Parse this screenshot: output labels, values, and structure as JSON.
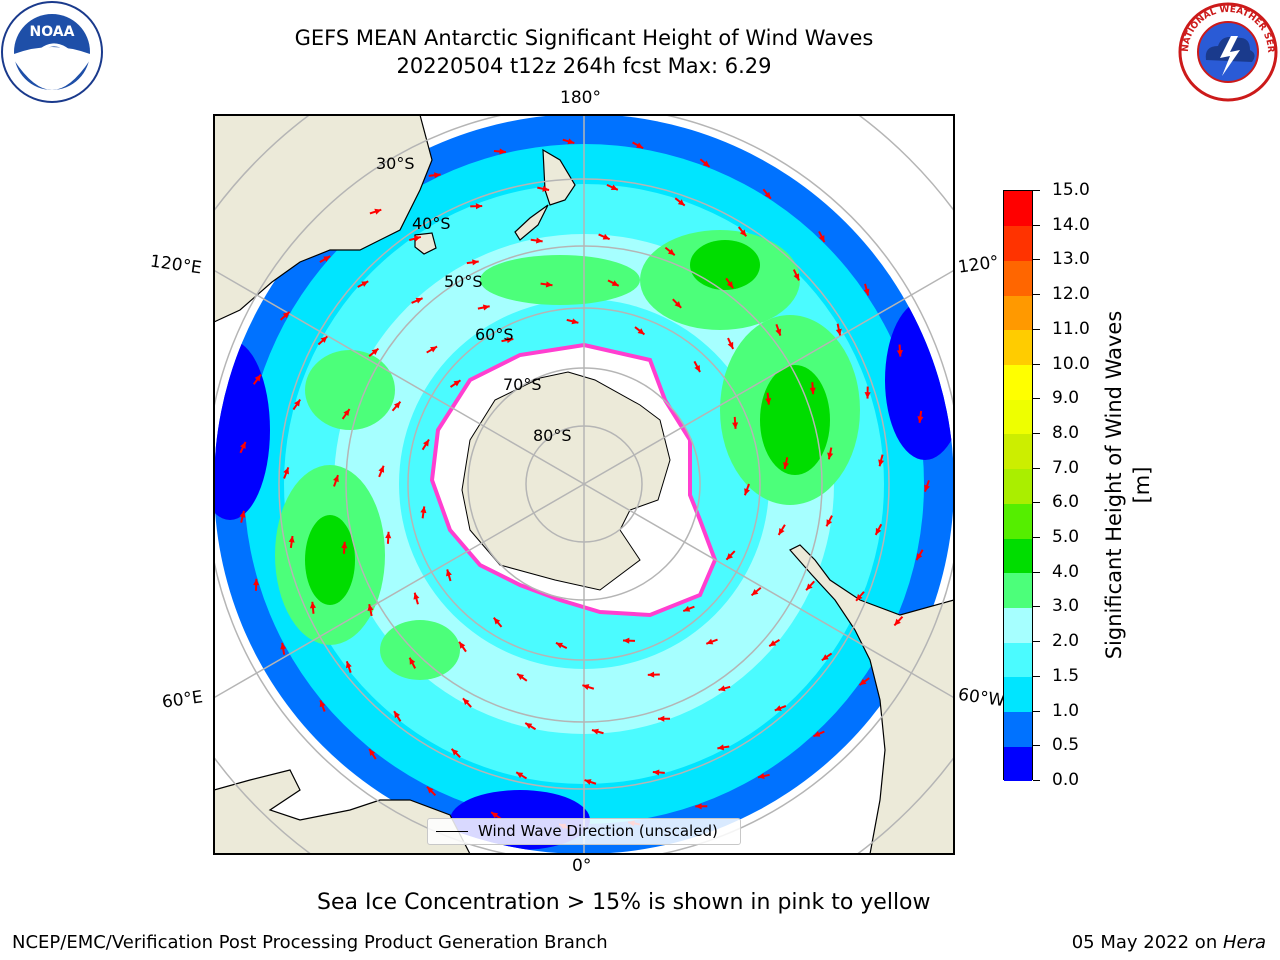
{
  "header": {
    "title_line1": "GEFS MEAN Antarctic Significant Height of Wind Waves",
    "title_line2": "20220504 t12z 264h fcst   Max: 6.29"
  },
  "logos": {
    "left": {
      "icon": "noaa-logo",
      "text": "NOAA"
    },
    "right": {
      "icon": "nws-logo",
      "text": "NATIONAL WEATHER SERVICE"
    }
  },
  "map": {
    "projection": "south-polar-stereographic",
    "lon_labels": {
      "top": "180°",
      "bottom": "0°",
      "left_upper": "120°E",
      "left_lower": "60°E",
      "right_upper": "120°",
      "right_lower": "60°W"
    },
    "lat_labels": [
      "30°S",
      "40°S",
      "50°S",
      "60°S",
      "70°S",
      "80°S"
    ],
    "legend": {
      "label": "Wind Wave Direction (unscaled)"
    },
    "colors": {
      "land": "#ecead9",
      "ice_edge": "#ff3fd0",
      "arrow": "#ff0000"
    }
  },
  "colorbar": {
    "title": "Significant Height of Wind Waves [m]",
    "ticks": [
      "0.0",
      "0.5",
      "1.0",
      "1.5",
      "2.0",
      "3.0",
      "4.0",
      "5.0",
      "6.0",
      "7.0",
      "8.0",
      "9.0",
      "10.0",
      "11.0",
      "12.0",
      "13.0",
      "14.0",
      "15.0"
    ],
    "colors": [
      "#0000ff",
      "#0072ff",
      "#00e5ff",
      "#4bfbff",
      "#a6ffff",
      "#4cff7a",
      "#00dd00",
      "#55ee00",
      "#aaee00",
      "#ccee00",
      "#eeff00",
      "#ffff00",
      "#ffcc00",
      "#ff9900",
      "#ff6600",
      "#ff3300",
      "#ff0000"
    ]
  },
  "caption": "Sea Ice Concentration > 15% is shown in pink to yellow",
  "footer": {
    "left": "NCEP/EMC/Verification Post Processing Product Generation Branch",
    "right_date": "05 May 2022 on ",
    "right_host": "Hera"
  }
}
